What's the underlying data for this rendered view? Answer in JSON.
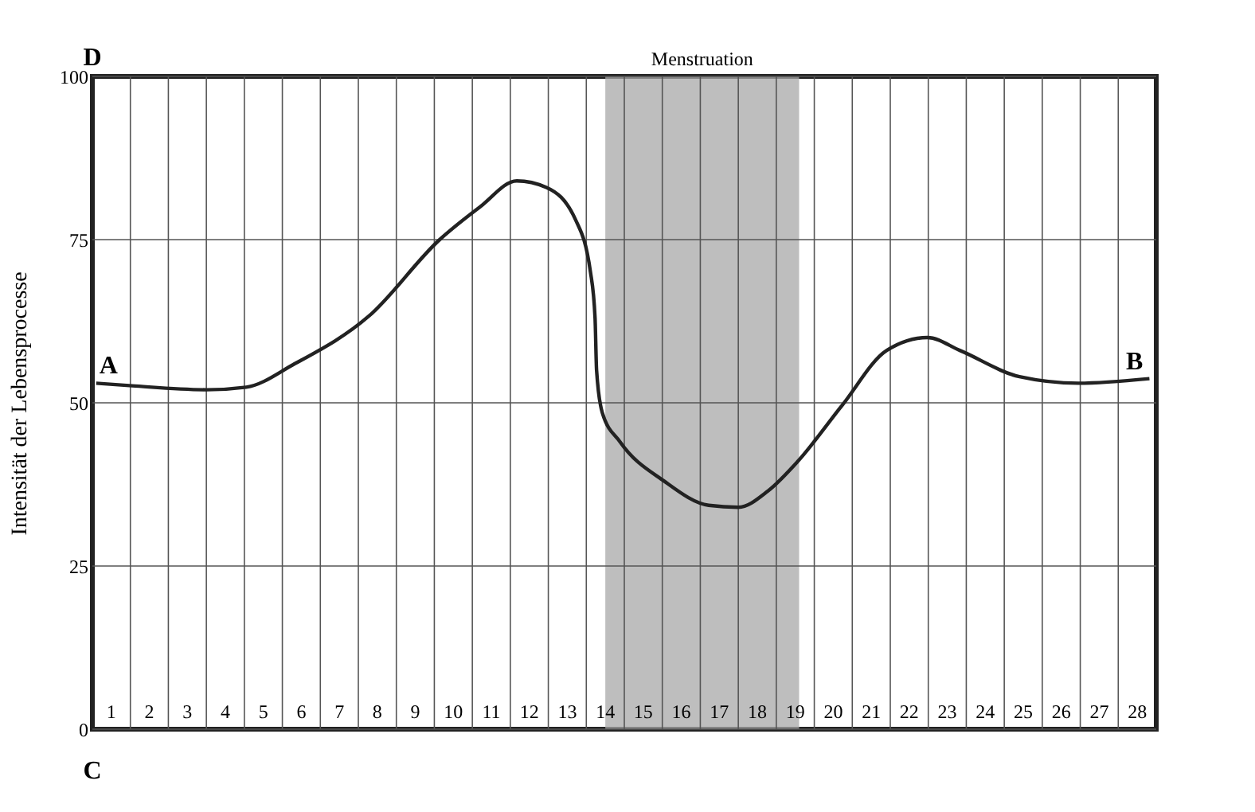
{
  "chart_data": {
    "type": "line",
    "xlabel": null,
    "ylabel": "Intensität der Lebensprocesse",
    "xlim": [
      0,
      28
    ],
    "ylim": [
      0,
      100
    ],
    "xticks": [
      {
        "value": 0.5,
        "label": "1"
      },
      {
        "value": 1,
        "label": null
      },
      {
        "value": 1.5,
        "label": "2"
      },
      {
        "value": 2,
        "label": null
      },
      {
        "value": 2.5,
        "label": "3"
      },
      {
        "value": 3,
        "label": null
      },
      {
        "value": 3.5,
        "label": "4"
      },
      {
        "value": 4,
        "label": null
      },
      {
        "value": 4.5,
        "label": "5"
      },
      {
        "value": 5,
        "label": null
      },
      {
        "value": 5.5,
        "label": "6"
      },
      {
        "value": 6,
        "label": null
      },
      {
        "value": 6.5,
        "label": "7"
      },
      {
        "value": 7,
        "label": null
      },
      {
        "value": 7.5,
        "label": "8"
      },
      {
        "value": 8,
        "label": null
      },
      {
        "value": 8.5,
        "label": "9"
      },
      {
        "value": 9,
        "label": null
      },
      {
        "value": 9.5,
        "label": "10"
      },
      {
        "value": 10,
        "label": null
      },
      {
        "value": 10.5,
        "label": "11"
      },
      {
        "value": 11,
        "label": null
      },
      {
        "value": 11.5,
        "label": "12"
      },
      {
        "value": 12,
        "label": null
      },
      {
        "value": 12.5,
        "label": "13"
      },
      {
        "value": 13,
        "label": null
      },
      {
        "value": 13.5,
        "label": "14"
      },
      {
        "value": 14,
        "label": null
      },
      {
        "value": 14.5,
        "label": "15"
      },
      {
        "value": 15,
        "label": null
      },
      {
        "value": 15.5,
        "label": "16"
      },
      {
        "value": 16,
        "label": null
      },
      {
        "value": 16.5,
        "label": "17"
      },
      {
        "value": 17,
        "label": null
      },
      {
        "value": 17.5,
        "label": "18"
      },
      {
        "value": 18,
        "label": null
      },
      {
        "value": 18.5,
        "label": "19"
      },
      {
        "value": 19,
        "label": null
      },
      {
        "value": 19.5,
        "label": "20"
      },
      {
        "value": 20,
        "label": null
      },
      {
        "value": 20.5,
        "label": "21"
      },
      {
        "value": 21,
        "label": null
      },
      {
        "value": 21.5,
        "label": "22"
      },
      {
        "value": 22,
        "label": null
      },
      {
        "value": 22.5,
        "label": "23"
      },
      {
        "value": 23,
        "label": null
      },
      {
        "value": 23.5,
        "label": "24"
      },
      {
        "value": 24,
        "label": null
      },
      {
        "value": 24.5,
        "label": "25"
      },
      {
        "value": 25,
        "label": null
      },
      {
        "value": 25.5,
        "label": "26"
      },
      {
        "value": 26,
        "label": null
      },
      {
        "value": 26.5,
        "label": "27"
      },
      {
        "value": 27,
        "label": null
      },
      {
        "value": 27.5,
        "label": "28"
      }
    ],
    "yticks": [
      0,
      25,
      50,
      75,
      100
    ],
    "grid": true,
    "marker": "none",
    "line_style": "solid",
    "series": [
      {
        "color": "#222222",
        "x": [
          0.1,
          1.05,
          3.0,
          4.05,
          5.33,
          7.28,
          9.14,
          10.2,
          11.17,
          11.95,
          12.72,
          13.11,
          13.23,
          13.27,
          13.42,
          13.89,
          15.05,
          16.22,
          17.0,
          17.78,
          18.56,
          19.73,
          20.9,
          21.98,
          22.84,
          24.4,
          25.95,
          27.82
        ],
        "values": [
          53,
          52.6,
          52,
          52.4,
          56,
          63.3,
          75,
          80,
          84,
          83,
          78,
          70,
          63,
          55,
          48.5,
          44,
          38,
          34.3,
          34,
          36.5,
          41,
          49.6,
          58,
          60,
          58,
          54,
          53,
          53.7
        ]
      }
    ],
    "bands": [
      {
        "axis": "x",
        "from": 13.5,
        "to": 18.6,
        "label": "Menstruation",
        "color": "#a8a8a8"
      }
    ],
    "annotations": [
      {
        "text": "A",
        "x": 0.1,
        "y": 53
      },
      {
        "text": "B",
        "x": 27.82,
        "y": 53.7
      },
      "C",
      "D"
    ]
  }
}
